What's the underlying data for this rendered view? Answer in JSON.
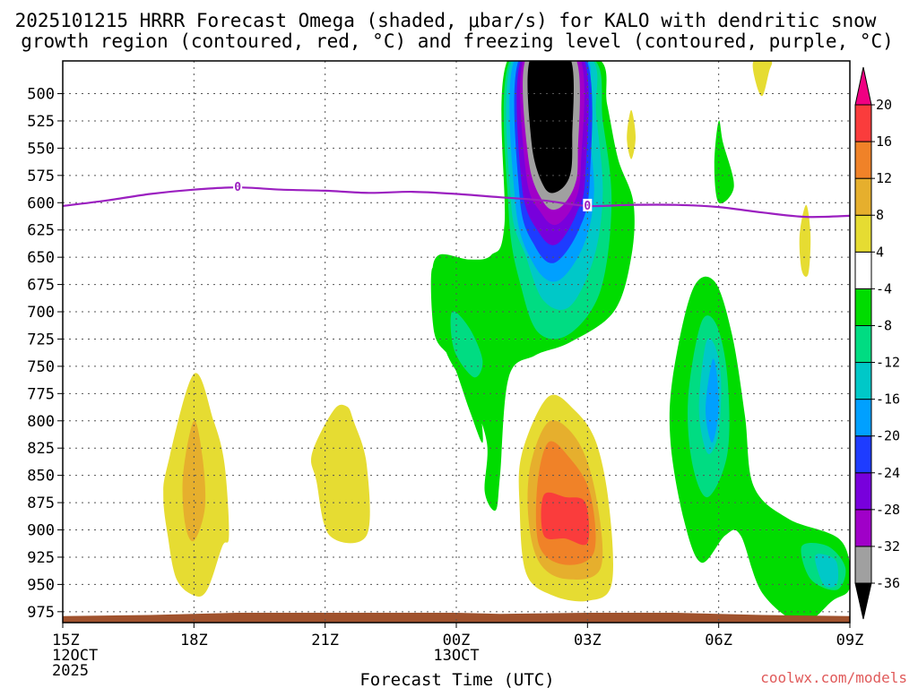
{
  "chart_data": {
    "type": "time-height contour",
    "title_line1": "2025101215 HRRR Forecast Omega (shaded, μbar/s) for KALO with dendritic snow",
    "title_line2": "growth region (contoured, red, °C) and freezing level (contoured, purple, °C)",
    "xlabel": "Forecast Time (UTC)",
    "credit": "coolwx.com/models",
    "xlim_hours": [
      0,
      18
    ],
    "ylim_mb": [
      470,
      985
    ],
    "x_ticks": [
      {
        "hour": 0,
        "lines": [
          "15Z",
          "12OCT",
          "2025"
        ]
      },
      {
        "hour": 3,
        "lines": [
          "18Z"
        ]
      },
      {
        "hour": 6,
        "lines": [
          "21Z"
        ]
      },
      {
        "hour": 9,
        "lines": [
          "00Z",
          "13OCT"
        ]
      },
      {
        "hour": 12,
        "lines": [
          "03Z"
        ]
      },
      {
        "hour": 15,
        "lines": [
          "06Z"
        ]
      },
      {
        "hour": 18,
        "lines": [
          "09Z"
        ]
      }
    ],
    "y_ticks": [
      500,
      525,
      550,
      575,
      600,
      625,
      650,
      675,
      700,
      725,
      750,
      775,
      800,
      825,
      850,
      875,
      900,
      925,
      950,
      975
    ],
    "colorbar": {
      "colors": [
        "#000000",
        "#a0a0a0",
        "#a000c8",
        "#7800dc",
        "#1e3cff",
        "#00a0ff",
        "#00c8c8",
        "#00dc82",
        "#00dc00",
        "#ffffff",
        "#e6dc32",
        "#e6af2d",
        "#f08228",
        "#fa3c3c",
        "#f00082"
      ],
      "labels": [
        "-36",
        "-32",
        "-28",
        "-24",
        "-20",
        "-16",
        "-12",
        "-8",
        "-4",
        "4",
        "8",
        "12",
        "16",
        "20"
      ]
    },
    "freezing_level": {
      "label": "0",
      "points": [
        [
          0,
          603
        ],
        [
          1,
          598
        ],
        [
          2,
          592
        ],
        [
          3,
          588
        ],
        [
          4,
          586
        ],
        [
          5,
          588
        ],
        [
          6,
          589
        ],
        [
          7,
          591
        ],
        [
          8,
          590
        ],
        [
          9,
          592
        ],
        [
          10,
          595
        ],
        [
          11,
          598
        ],
        [
          12,
          603
        ],
        [
          13,
          602
        ],
        [
          14,
          602
        ],
        [
          15,
          604
        ],
        [
          16,
          609
        ],
        [
          17,
          613
        ],
        [
          18,
          612
        ]
      ]
    },
    "terrain": {
      "color": "#a0522d",
      "points": [
        [
          0,
          979
        ],
        [
          2,
          978
        ],
        [
          4,
          976
        ],
        [
          6,
          976
        ],
        [
          8,
          976
        ],
        [
          9,
          976
        ],
        [
          10,
          977
        ],
        [
          12,
          976
        ],
        [
          14,
          976
        ],
        [
          16,
          978
        ],
        [
          18,
          979
        ]
      ]
    },
    "omega_regions": [
      {
        "name": "jet-green",
        "color": "#00dc00",
        "points": [
          [
            10.2,
            467
          ],
          [
            10.1,
            620
          ],
          [
            9.8,
            648
          ],
          [
            9.3,
            652
          ],
          [
            8.6,
            648
          ],
          [
            8.45,
            670
          ],
          [
            8.6,
            710
          ],
          [
            8.8,
            740
          ],
          [
            9.3,
            775
          ],
          [
            9.7,
            820
          ],
          [
            9.65,
            865
          ],
          [
            9.9,
            882
          ],
          [
            10.0,
            850
          ],
          [
            10.2,
            760
          ],
          [
            10.8,
            740
          ],
          [
            11.6,
            728
          ],
          [
            12.6,
            700
          ],
          [
            13.0,
            650
          ],
          [
            13.05,
            600
          ],
          [
            12.7,
            560
          ],
          [
            12.45,
            510
          ],
          [
            12.2,
            467
          ]
        ]
      },
      {
        "name": "jet-mint",
        "color": "#00dc82",
        "points": [
          [
            10.25,
            467
          ],
          [
            10.2,
            610
          ],
          [
            10.5,
            680
          ],
          [
            10.9,
            720
          ],
          [
            11.6,
            720
          ],
          [
            12.3,
            680
          ],
          [
            12.55,
            600
          ],
          [
            12.35,
            525
          ],
          [
            12.1,
            467
          ]
        ]
      },
      {
        "name": "jet-cyan",
        "color": "#00c8c8",
        "points": [
          [
            10.3,
            467
          ],
          [
            10.25,
            600
          ],
          [
            10.6,
            650
          ],
          [
            11.0,
            690
          ],
          [
            11.6,
            695
          ],
          [
            12.15,
            650
          ],
          [
            12.35,
            590
          ],
          [
            12.2,
            520
          ],
          [
            12.05,
            467
          ]
        ]
      },
      {
        "name": "jet-sky",
        "color": "#00a0ff",
        "points": [
          [
            10.35,
            467
          ],
          [
            10.35,
            600
          ],
          [
            10.75,
            655
          ],
          [
            11.3,
            672
          ],
          [
            11.9,
            640
          ],
          [
            12.15,
            590
          ],
          [
            12.0,
            520
          ],
          [
            11.95,
            467
          ]
        ]
      },
      {
        "name": "jet-blue",
        "color": "#1e3cff",
        "points": [
          [
            10.45,
            467
          ],
          [
            10.45,
            595
          ],
          [
            10.8,
            640
          ],
          [
            11.25,
            655
          ],
          [
            11.8,
            625
          ],
          [
            12.05,
            580
          ],
          [
            11.95,
            467
          ]
        ]
      },
      {
        "name": "jet-violet",
        "color": "#7800dc",
        "points": [
          [
            10.5,
            467
          ],
          [
            10.5,
            585
          ],
          [
            10.9,
            628
          ],
          [
            11.3,
            638
          ],
          [
            11.75,
            610
          ],
          [
            11.95,
            575
          ],
          [
            11.9,
            467
          ]
        ]
      },
      {
        "name": "jet-purple",
        "color": "#a000c8",
        "points": [
          [
            10.55,
            467
          ],
          [
            10.6,
            575
          ],
          [
            10.95,
            610
          ],
          [
            11.3,
            620
          ],
          [
            11.7,
            600
          ],
          [
            11.85,
            565
          ],
          [
            11.82,
            467
          ]
        ]
      },
      {
        "name": "jet-gray",
        "color": "#a0a0a0",
        "points": [
          [
            10.6,
            467
          ],
          [
            10.65,
            560
          ],
          [
            11.0,
            600
          ],
          [
            11.35,
            605
          ],
          [
            11.7,
            585
          ],
          [
            11.78,
            555
          ],
          [
            11.72,
            467
          ]
        ]
      },
      {
        "name": "jet-black",
        "color": "#000000",
        "points": [
          [
            10.7,
            467
          ],
          [
            10.72,
            545
          ],
          [
            11.0,
            585
          ],
          [
            11.3,
            590
          ],
          [
            11.6,
            575
          ],
          [
            11.65,
            540
          ],
          [
            11.6,
            467
          ]
        ]
      },
      {
        "name": "lowlevel-green-left",
        "color": "#00dc00",
        "points": [
          [
            8.45,
            660
          ],
          [
            8.5,
            720
          ],
          [
            8.9,
            745
          ],
          [
            9.3,
            790
          ],
          [
            9.6,
            820
          ],
          [
            9.5,
            780
          ],
          [
            9.15,
            740
          ],
          [
            8.85,
            700
          ]
        ]
      },
      {
        "name": "lowlevel-teal-left",
        "color": "#00dc82",
        "points": [
          [
            8.9,
            700
          ],
          [
            8.95,
            735
          ],
          [
            9.4,
            760
          ],
          [
            9.6,
            745
          ],
          [
            9.3,
            715
          ]
        ]
      },
      {
        "name": "late-green",
        "color": "#00dc00",
        "points": [
          [
            14.4,
            680
          ],
          [
            13.95,
            760
          ],
          [
            13.9,
            820
          ],
          [
            14.2,
            890
          ],
          [
            14.6,
            930
          ],
          [
            15.15,
            905
          ],
          [
            15.5,
            905
          ],
          [
            16.0,
            958
          ],
          [
            16.9,
            985
          ],
          [
            17.6,
            965
          ],
          [
            18.0,
            952
          ],
          [
            17.8,
            910
          ],
          [
            16.6,
            890
          ],
          [
            15.8,
            860
          ],
          [
            15.6,
            795
          ],
          [
            15.3,
            720
          ],
          [
            14.9,
            672
          ]
        ]
      },
      {
        "name": "late-teal",
        "color": "#00dc82",
        "points": [
          [
            14.6,
            710
          ],
          [
            14.3,
            780
          ],
          [
            14.4,
            840
          ],
          [
            14.75,
            870
          ],
          [
            15.2,
            830
          ],
          [
            15.2,
            760
          ],
          [
            14.95,
            712
          ]
        ]
      },
      {
        "name": "late-cyan",
        "color": "#00c8c8",
        "points": [
          [
            14.7,
            730
          ],
          [
            14.55,
            790
          ],
          [
            14.75,
            830
          ],
          [
            15.0,
            810
          ],
          [
            15.05,
            760
          ],
          [
            14.9,
            730
          ]
        ]
      },
      {
        "name": "late-sky",
        "color": "#00a0ff",
        "points": [
          [
            14.85,
            745
          ],
          [
            14.7,
            790
          ],
          [
            14.85,
            820
          ],
          [
            15.0,
            790
          ],
          [
            14.95,
            755
          ]
        ]
      },
      {
        "name": "late-teal-right",
        "color": "#00dc82",
        "points": [
          [
            16.9,
            915
          ],
          [
            17.1,
            945
          ],
          [
            17.7,
            955
          ],
          [
            17.9,
            935
          ],
          [
            17.5,
            915
          ]
        ]
      },
      {
        "name": "late-cyan-right",
        "color": "#00c8c8",
        "points": [
          [
            17.2,
            925
          ],
          [
            17.4,
            950
          ],
          [
            17.7,
            950
          ],
          [
            17.7,
            930
          ],
          [
            17.45,
            923
          ]
        ]
      },
      {
        "name": "upper-green-1",
        "color": "#00dc00",
        "points": [
          [
            15.0,
            525
          ],
          [
            14.9,
            565
          ],
          [
            15.0,
            600
          ],
          [
            15.35,
            585
          ],
          [
            15.1,
            545
          ]
        ]
      },
      {
        "name": "sink-yellow-1",
        "color": "#e6dc32",
        "points": [
          [
            3.0,
            757
          ],
          [
            2.4,
            840
          ],
          [
            2.3,
            870
          ],
          [
            2.4,
            905
          ],
          [
            2.6,
            945
          ],
          [
            3.0,
            960
          ],
          [
            3.3,
            955
          ],
          [
            3.65,
            915
          ],
          [
            3.8,
            905
          ],
          [
            3.7,
            840
          ],
          [
            3.45,
            800
          ]
        ]
      },
      {
        "name": "sink-gold-1",
        "color": "#e6af2d",
        "points": [
          [
            3.0,
            800
          ],
          [
            2.75,
            850
          ],
          [
            2.8,
            895
          ],
          [
            3.0,
            910
          ],
          [
            3.25,
            880
          ],
          [
            3.2,
            835
          ]
        ]
      },
      {
        "name": "sink-yellow-2",
        "color": "#e6dc32",
        "points": [
          [
            6.2,
            790
          ],
          [
            5.7,
            830
          ],
          [
            5.8,
            855
          ],
          [
            6.1,
            905
          ],
          [
            6.95,
            905
          ],
          [
            6.95,
            840
          ],
          [
            6.65,
            800
          ],
          [
            6.5,
            787
          ]
        ]
      },
      {
        "name": "sink-yellow-3",
        "color": "#e6dc32",
        "points": [
          [
            11.1,
            778
          ],
          [
            10.5,
            830
          ],
          [
            10.45,
            880
          ],
          [
            10.6,
            940
          ],
          [
            11.2,
            960
          ],
          [
            12.0,
            965
          ],
          [
            12.55,
            950
          ],
          [
            12.5,
            880
          ],
          [
            12.2,
            820
          ],
          [
            11.7,
            790
          ]
        ]
      },
      {
        "name": "sink-gold-3",
        "color": "#e6af2d",
        "points": [
          [
            11.15,
            800
          ],
          [
            10.7,
            840
          ],
          [
            10.65,
            890
          ],
          [
            10.9,
            930
          ],
          [
            11.5,
            945
          ],
          [
            12.3,
            935
          ],
          [
            12.2,
            870
          ],
          [
            11.8,
            820
          ]
        ]
      },
      {
        "name": "sink-orange-3",
        "color": "#f08228",
        "points": [
          [
            11.1,
            820
          ],
          [
            10.85,
            860
          ],
          [
            10.9,
            915
          ],
          [
            11.5,
            932
          ],
          [
            12.15,
            920
          ],
          [
            12.05,
            865
          ],
          [
            11.55,
            832
          ]
        ]
      },
      {
        "name": "sink-red-3",
        "color": "#fa3c3c",
        "points": [
          [
            11.0,
            868
          ],
          [
            11.0,
            905
          ],
          [
            11.5,
            908
          ],
          [
            12.0,
            912
          ],
          [
            11.95,
            875
          ],
          [
            11.5,
            870
          ]
        ]
      },
      {
        "name": "sink-yellow-top",
        "color": "#e6dc32",
        "points": [
          [
            15.8,
            470
          ],
          [
            15.85,
            490
          ],
          [
            16.0,
            502
          ],
          [
            16.15,
            480
          ],
          [
            16.2,
            470
          ]
        ]
      },
      {
        "name": "sink-yellow-mid",
        "color": "#e6dc32",
        "points": [
          [
            13.0,
            515
          ],
          [
            12.9,
            540
          ],
          [
            13.0,
            560
          ],
          [
            13.1,
            540
          ]
        ]
      },
      {
        "name": "sink-yellow-right",
        "color": "#e6dc32",
        "points": [
          [
            17.0,
            602
          ],
          [
            16.85,
            630
          ],
          [
            16.9,
            662
          ],
          [
            17.05,
            665
          ],
          [
            17.1,
            630
          ]
        ]
      }
    ]
  }
}
